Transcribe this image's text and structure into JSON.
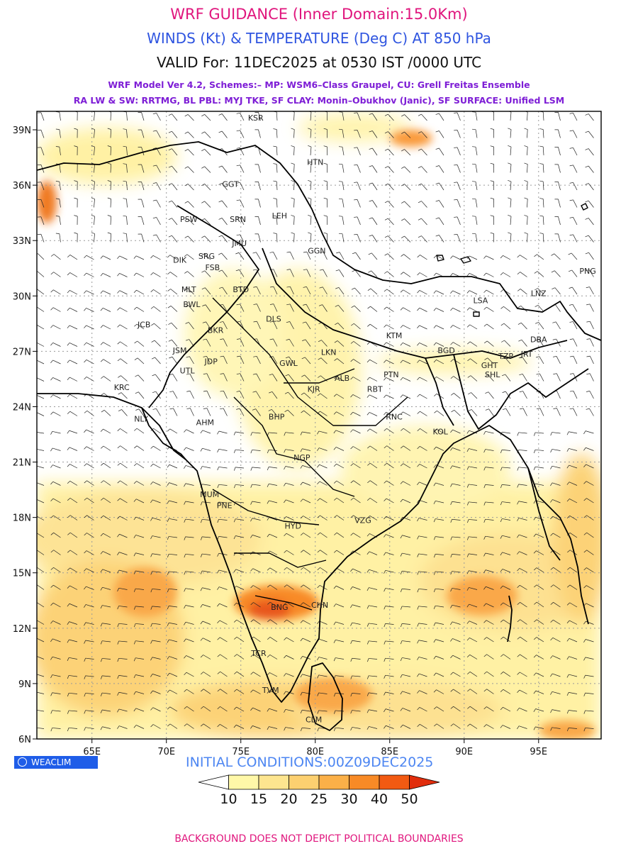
{
  "titles": {
    "line1": "WRF GUIDANCE (Inner Domain:15.0Km)",
    "line2": "WINDS (Kt) & TEMPERATURE (Deg C) AT 850 hPa",
    "line3": "VALID For: 11DEC2025 at 0530 IST /0000 UTC",
    "line4": "WRF Model Ver 4.2, Schemes:– MP: WSM6–Class Graupel, CU: Grell Freitas Ensemble",
    "line5": "RA LW & SW: RRTMG, BL PBL: MYJ TKE, SF CLAY: Monin–Obukhov (Janic), SF SURFACE: Unified LSM"
  },
  "axes": {
    "lat_labels": [
      "39N",
      "36N",
      "33N",
      "30N",
      "27N",
      "24N",
      "21N",
      "18N",
      "15N",
      "12N",
      "9N",
      "6N"
    ],
    "lon_labels": [
      "65E",
      "70E",
      "75E",
      "80E",
      "85E",
      "90E",
      "95E"
    ],
    "lat_range": [
      6,
      40
    ],
    "lon_range": [
      61.3,
      99.2
    ]
  },
  "cities": [
    {
      "name": "KSR",
      "lat": 39.5,
      "lon": 76.0
    },
    {
      "name": "HTN",
      "lat": 37.1,
      "lon": 80.0
    },
    {
      "name": "GGT",
      "lat": 35.9,
      "lon": 74.3
    },
    {
      "name": "LEH",
      "lat": 34.2,
      "lon": 77.6
    },
    {
      "name": "PSW",
      "lat": 34.0,
      "lon": 71.5
    },
    {
      "name": "SRN",
      "lat": 34.0,
      "lon": 74.8
    },
    {
      "name": "JMU",
      "lat": 32.7,
      "lon": 74.9
    },
    {
      "name": "GGN",
      "lat": 32.3,
      "lon": 80.1
    },
    {
      "name": "DIK",
      "lat": 31.8,
      "lon": 70.9
    },
    {
      "name": "SRG",
      "lat": 32.0,
      "lon": 72.7
    },
    {
      "name": "FSB",
      "lat": 31.4,
      "lon": 73.1
    },
    {
      "name": "PNG",
      "lat": 31.2,
      "lon": 98.3
    },
    {
      "name": "MLT",
      "lat": 30.2,
      "lon": 71.5
    },
    {
      "name": "BTD",
      "lat": 30.2,
      "lon": 75.0
    },
    {
      "name": "LSA",
      "lat": 29.6,
      "lon": 91.1
    },
    {
      "name": "LNZ",
      "lat": 30.0,
      "lon": 95.0
    },
    {
      "name": "BWL",
      "lat": 29.4,
      "lon": 71.7
    },
    {
      "name": "DLS",
      "lat": 28.6,
      "lon": 77.2
    },
    {
      "name": "JCB",
      "lat": 28.3,
      "lon": 68.5
    },
    {
      "name": "BKR",
      "lat": 28.0,
      "lon": 73.3
    },
    {
      "name": "KTM",
      "lat": 27.7,
      "lon": 85.3
    },
    {
      "name": "JSM",
      "lat": 26.9,
      "lon": 70.9
    },
    {
      "name": "BGD",
      "lat": 26.9,
      "lon": 88.8
    },
    {
      "name": "TZP",
      "lat": 26.6,
      "lon": 92.8
    },
    {
      "name": "JRT",
      "lat": 26.7,
      "lon": 94.2
    },
    {
      "name": "DBA",
      "lat": 27.5,
      "lon": 95.0
    },
    {
      "name": "JDP",
      "lat": 26.3,
      "lon": 73.0
    },
    {
      "name": "LKN",
      "lat": 26.8,
      "lon": 80.9
    },
    {
      "name": "GWL",
      "lat": 26.2,
      "lon": 78.2
    },
    {
      "name": "GHT",
      "lat": 26.1,
      "lon": 91.7
    },
    {
      "name": "SHL",
      "lat": 25.6,
      "lon": 91.9
    },
    {
      "name": "UTL",
      "lat": 25.8,
      "lon": 71.4
    },
    {
      "name": "PTN",
      "lat": 25.6,
      "lon": 85.1
    },
    {
      "name": "ALB",
      "lat": 25.4,
      "lon": 81.8
    },
    {
      "name": "KRC",
      "lat": 24.9,
      "lon": 67.0
    },
    {
      "name": "KJR",
      "lat": 24.8,
      "lon": 79.9
    },
    {
      "name": "RBT",
      "lat": 24.8,
      "lon": 84.0
    },
    {
      "name": "AHM",
      "lat": 23.0,
      "lon": 72.6
    },
    {
      "name": "NLY",
      "lat": 23.2,
      "lon": 68.3
    },
    {
      "name": "BHP",
      "lat": 23.3,
      "lon": 77.4
    },
    {
      "name": "RNC",
      "lat": 23.3,
      "lon": 85.3
    },
    {
      "name": "KOL",
      "lat": 22.5,
      "lon": 88.4
    },
    {
      "name": "NGP",
      "lat": 21.1,
      "lon": 79.1
    },
    {
      "name": "MUM",
      "lat": 19.1,
      "lon": 72.9
    },
    {
      "name": "PNE",
      "lat": 18.5,
      "lon": 73.9
    },
    {
      "name": "HYD",
      "lat": 17.4,
      "lon": 78.5
    },
    {
      "name": "VZG",
      "lat": 17.7,
      "lon": 83.2
    },
    {
      "name": "CHN",
      "lat": 13.1,
      "lon": 80.3
    },
    {
      "name": "BNG",
      "lat": 13.0,
      "lon": 77.6
    },
    {
      "name": "TCR",
      "lat": 10.5,
      "lon": 76.2
    },
    {
      "name": "TVM",
      "lat": 8.5,
      "lon": 77.0
    },
    {
      "name": "CLM",
      "lat": 6.9,
      "lon": 79.9
    }
  ],
  "colorbar": {
    "labels": [
      "10",
      "15",
      "20",
      "25",
      "30",
      "40",
      "50"
    ],
    "colors": [
      "#ffffff",
      "#fff8a8",
      "#fde58f",
      "#fcd070",
      "#fbb048",
      "#f88a26",
      "#f25a12",
      "#e12d0c"
    ]
  },
  "badge": {
    "text": "WEACLIM"
  },
  "initial": "INITIAL CONDITIONS:00Z09DEC2025",
  "footer": "BACKGROUND DOES NOT DEPICT POLITICAL BOUNDARIES"
}
